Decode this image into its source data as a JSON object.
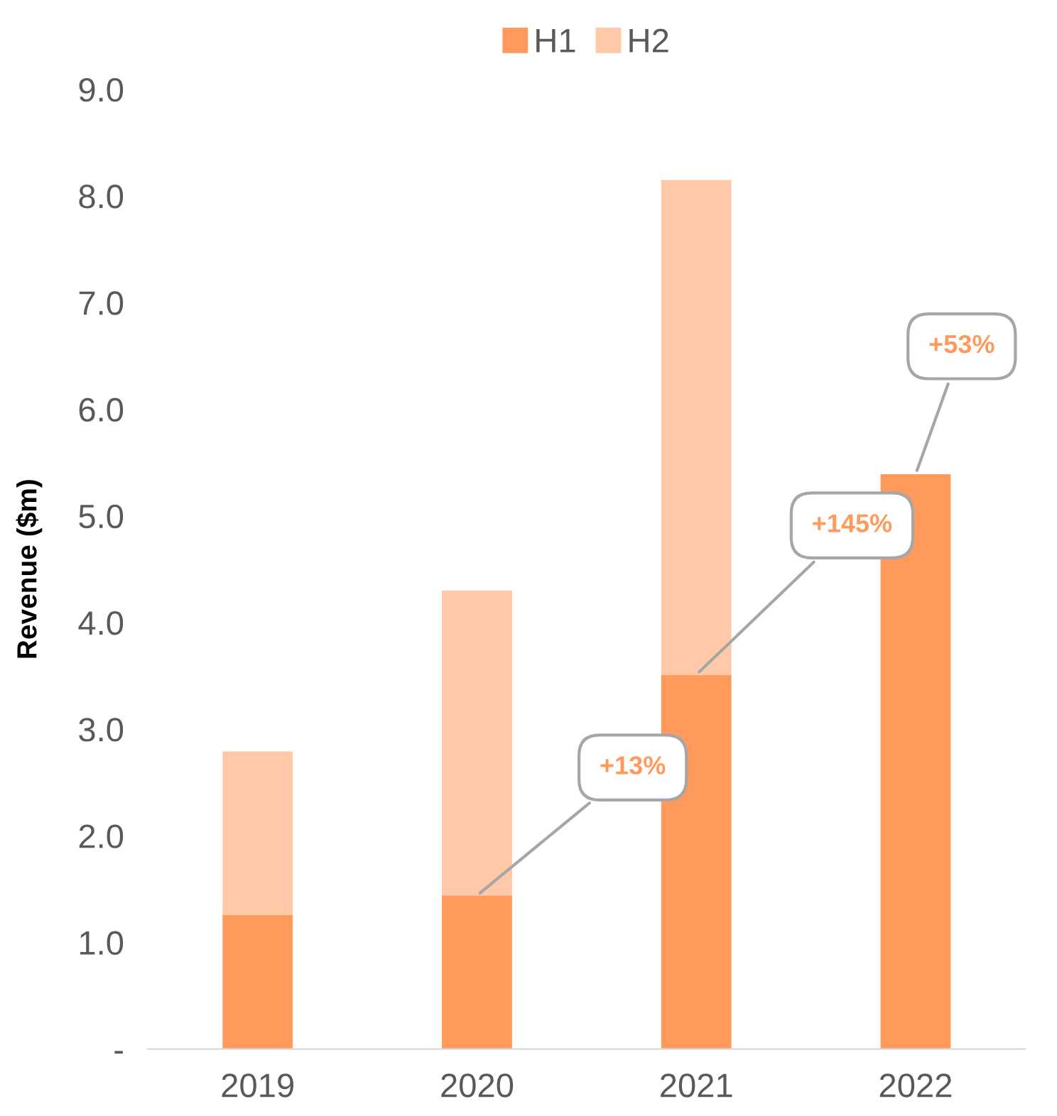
{
  "chart_data": {
    "type": "bar",
    "stacked": true,
    "ylabel": "Revenue ($m)",
    "categories": [
      "2019",
      "2020",
      "2021",
      "2022"
    ],
    "series": [
      {
        "name": "H1",
        "color": "#ff9a5c",
        "values": [
          1.26,
          1.44,
          3.51,
          5.39
        ]
      },
      {
        "name": "H2",
        "color": "#ffc9a9",
        "values": [
          1.53,
          2.86,
          4.64,
          null
        ]
      }
    ],
    "ylim": [
      0,
      9
    ],
    "yticks": [
      {
        "value": 0,
        "label": "-"
      },
      {
        "value": 1,
        "label": "1.0"
      },
      {
        "value": 2,
        "label": "2.0"
      },
      {
        "value": 3,
        "label": "3.0"
      },
      {
        "value": 4,
        "label": "4.0"
      },
      {
        "value": 5,
        "label": "5.0"
      },
      {
        "value": 6,
        "label": "6.0"
      },
      {
        "value": 7,
        "label": "7.0"
      },
      {
        "value": 8,
        "label": "8.0"
      },
      {
        "value": 9,
        "label": "9.0"
      }
    ],
    "grid": false,
    "legend": "top",
    "annotations": [
      {
        "text": "+13%",
        "x": "2020",
        "y": 1.44
      },
      {
        "text": "+145%",
        "x": "2021",
        "y": 3.51
      },
      {
        "text": "+53%",
        "x": "2022",
        "y": 5.39
      }
    ]
  }
}
